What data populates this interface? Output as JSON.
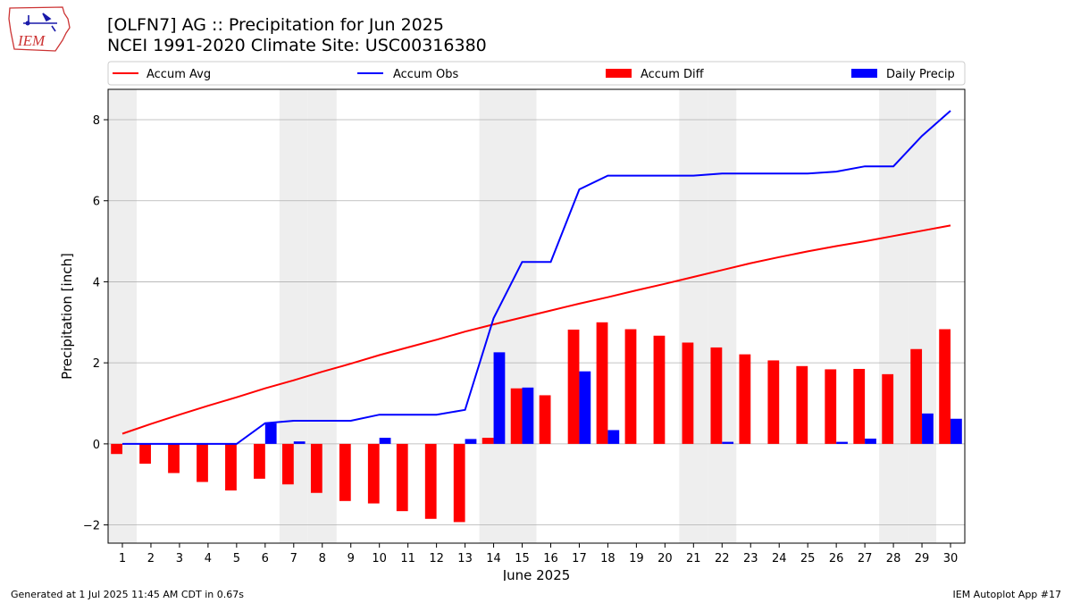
{
  "header": {
    "title_line1": "[OLFN7] AG :: Precipitation for Jun 2025",
    "title_line2": "NCEI 1991-2020 Climate Site: USC00316380",
    "logo_text": "IEM"
  },
  "footer": {
    "generated": "Generated at 1 Jul 2025 11:45 AM CDT in 0.67s",
    "app": "IEM Autoplot App #17"
  },
  "chart_data": {
    "type": "bar",
    "xlabel": "June 2025",
    "ylabel": "Precipitation [inch]",
    "ylim": [
      -2.45,
      8.75
    ],
    "xlim": [
      0.5,
      30.5
    ],
    "yticks": [
      -2,
      0,
      2,
      4,
      6,
      8
    ],
    "grid": "horizontal",
    "legend_position": "top",
    "x": [
      1,
      2,
      3,
      4,
      5,
      6,
      7,
      8,
      9,
      10,
      11,
      12,
      13,
      14,
      15,
      16,
      17,
      18,
      19,
      20,
      21,
      22,
      23,
      24,
      25,
      26,
      27,
      28,
      29,
      30
    ],
    "weekend_days": [
      1,
      7,
      8,
      14,
      15,
      21,
      22,
      28,
      29
    ],
    "series": [
      {
        "name": "Accum Avg",
        "kind": "line",
        "color": "#ff0000",
        "values": [
          0.25,
          0.49,
          0.72,
          0.94,
          1.15,
          1.37,
          1.57,
          1.78,
          1.98,
          2.19,
          2.38,
          2.57,
          2.77,
          2.95,
          3.12,
          3.29,
          3.46,
          3.62,
          3.79,
          3.95,
          4.12,
          4.29,
          4.46,
          4.61,
          4.75,
          4.88,
          5.0,
          5.13,
          5.26,
          5.39
        ]
      },
      {
        "name": "Accum Obs",
        "kind": "line",
        "color": "#0000ff",
        "values": [
          0.0,
          0.0,
          0.0,
          0.0,
          0.0,
          0.51,
          0.57,
          0.57,
          0.57,
          0.72,
          0.72,
          0.72,
          0.84,
          3.1,
          4.49,
          4.49,
          6.28,
          6.62,
          6.62,
          6.62,
          6.62,
          6.67,
          6.67,
          6.67,
          6.67,
          6.72,
          6.85,
          6.85,
          7.6,
          8.22
        ]
      },
      {
        "name": "Accum Diff",
        "kind": "bar",
        "color": "#ff0000",
        "values": [
          -0.25,
          -0.49,
          -0.72,
          -0.94,
          -1.15,
          -0.86,
          -1.0,
          -1.21,
          -1.41,
          -1.47,
          -1.66,
          -1.85,
          -1.93,
          0.15,
          1.37,
          1.2,
          2.82,
          3.0,
          2.83,
          2.67,
          2.5,
          2.38,
          2.21,
          2.06,
          1.92,
          1.84,
          1.85,
          1.72,
          2.34,
          2.83
        ]
      },
      {
        "name": "Daily Precip",
        "kind": "bar",
        "color": "#0000ff",
        "values": [
          0,
          0,
          0,
          0,
          0,
          0.51,
          0.06,
          0,
          0,
          0.15,
          0,
          0,
          0.12,
          2.26,
          1.39,
          0,
          1.79,
          0.34,
          0,
          0,
          0,
          0.05,
          0,
          0,
          0,
          0.05,
          0.13,
          0,
          0.75,
          0.62
        ]
      }
    ]
  }
}
